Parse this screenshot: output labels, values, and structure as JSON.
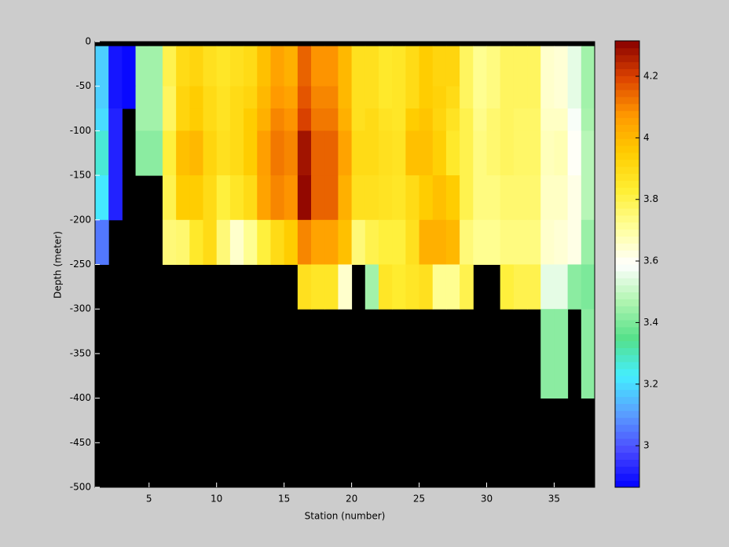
{
  "chart_data": {
    "type": "heatmap",
    "xlabel": "Station (number)",
    "ylabel": "Depth (meter)",
    "x_edges": [
      1,
      2,
      3,
      4,
      5,
      6,
      7,
      8,
      9,
      10,
      11,
      12,
      13,
      14,
      15,
      16,
      17,
      18,
      19,
      20,
      21,
      22,
      23,
      24,
      25,
      26,
      27,
      28,
      29,
      30,
      31,
      32,
      33,
      34,
      35,
      36,
      37,
      38
    ],
    "y_edges": [
      0,
      -5,
      -50,
      -75,
      -100,
      -150,
      -200,
      -250,
      -300,
      -400,
      -500
    ],
    "z": [
      [
        null,
        null,
        null,
        null,
        null,
        null,
        null,
        null,
        null,
        null,
        null,
        null,
        null,
        null,
        null,
        null,
        null,
        null,
        null,
        null,
        null,
        null,
        null,
        null,
        null,
        null,
        null,
        null,
        null,
        null,
        null,
        null,
        null,
        null,
        null,
        null,
        null
      ],
      [
        3.18,
        2.9,
        2.88,
        3.45,
        3.45,
        3.8,
        3.9,
        3.92,
        3.88,
        3.86,
        3.88,
        3.9,
        3.98,
        4.05,
        4.02,
        4.15,
        4.08,
        4.08,
        4.0,
        3.88,
        3.88,
        3.85,
        3.86,
        3.9,
        3.95,
        3.92,
        3.92,
        3.78,
        3.72,
        3.74,
        3.78,
        3.78,
        3.78,
        3.65,
        3.64,
        3.55,
        3.45
      ],
      [
        3.18,
        2.9,
        2.88,
        3.45,
        3.45,
        3.78,
        3.92,
        3.95,
        3.9,
        3.87,
        3.9,
        3.92,
        4.0,
        4.07,
        4.05,
        4.17,
        4.1,
        4.1,
        4.0,
        3.88,
        3.88,
        3.85,
        3.86,
        3.9,
        3.95,
        3.93,
        3.9,
        3.78,
        3.72,
        3.74,
        3.78,
        3.78,
        3.78,
        3.65,
        3.64,
        3.55,
        3.45
      ],
      [
        3.2,
        2.92,
        null,
        3.45,
        3.45,
        3.78,
        3.92,
        3.95,
        3.9,
        3.87,
        3.9,
        3.95,
        4.02,
        4.1,
        4.08,
        4.2,
        4.12,
        4.12,
        4.02,
        3.88,
        3.9,
        3.87,
        3.86,
        3.95,
        3.97,
        3.92,
        3.87,
        3.8,
        3.73,
        3.76,
        3.78,
        3.77,
        3.77,
        3.66,
        3.66,
        3.58,
        3.46
      ],
      [
        3.27,
        2.92,
        null,
        3.42,
        3.42,
        3.82,
        3.98,
        4.0,
        3.92,
        3.88,
        3.9,
        3.95,
        4.06,
        4.12,
        4.1,
        4.28,
        4.15,
        4.15,
        4.05,
        3.9,
        3.9,
        3.88,
        3.87,
        3.98,
        3.98,
        3.94,
        3.85,
        3.8,
        3.74,
        3.76,
        3.78,
        3.77,
        3.77,
        3.67,
        3.68,
        3.6,
        3.48
      ],
      [
        3.22,
        2.92,
        null,
        null,
        null,
        3.8,
        3.95,
        3.95,
        3.9,
        3.82,
        3.86,
        3.9,
        4.05,
        4.1,
        4.08,
        4.3,
        4.15,
        4.15,
        4.02,
        3.88,
        3.88,
        3.87,
        3.86,
        3.9,
        3.95,
        3.98,
        3.95,
        3.8,
        3.74,
        3.74,
        3.76,
        3.76,
        3.76,
        3.66,
        3.66,
        3.62,
        3.48
      ],
      [
        3.05,
        null,
        null,
        null,
        null,
        3.75,
        3.76,
        3.85,
        3.9,
        3.75,
        3.65,
        3.72,
        3.82,
        3.9,
        3.95,
        4.1,
        4.05,
        4.05,
        3.98,
        3.75,
        3.8,
        3.82,
        3.82,
        3.88,
        4.02,
        4.02,
        4.0,
        3.75,
        3.72,
        3.72,
        3.74,
        3.74,
        3.74,
        3.65,
        3.64,
        3.62,
        3.44
      ],
      [
        null,
        null,
        null,
        null,
        null,
        null,
        null,
        null,
        null,
        null,
        null,
        null,
        null,
        null,
        null,
        3.88,
        3.86,
        3.86,
        3.65,
        null,
        3.45,
        3.86,
        3.84,
        3.86,
        3.88,
        3.72,
        3.72,
        3.8,
        null,
        null,
        3.82,
        3.8,
        3.8,
        3.55,
        3.55,
        3.42,
        3.4
      ],
      [
        null,
        null,
        null,
        null,
        null,
        null,
        null,
        null,
        null,
        null,
        null,
        null,
        null,
        null,
        null,
        null,
        null,
        null,
        null,
        null,
        null,
        null,
        null,
        null,
        null,
        null,
        null,
        null,
        null,
        null,
        null,
        null,
        null,
        3.42,
        3.42,
        null,
        3.42
      ],
      [
        null,
        null,
        null,
        null,
        null,
        null,
        null,
        null,
        null,
        null,
        null,
        null,
        null,
        null,
        null,
        null,
        null,
        null,
        null,
        null,
        null,
        null,
        null,
        null,
        null,
        null,
        null,
        null,
        null,
        null,
        null,
        null,
        null,
        null,
        null,
        null,
        null
      ]
    ],
    "xlim": [
      1,
      38
    ],
    "xticks": [
      5,
      10,
      15,
      20,
      25,
      30,
      35
    ],
    "ylim": [
      -500,
      0
    ],
    "yticks": [
      0,
      -50,
      -100,
      -150,
      -200,
      -250,
      -300,
      -350,
      -400,
      -450,
      -500
    ],
    "clim": [
      2.865,
      4.315
    ],
    "cticks": [
      3,
      3.2,
      3.4,
      3.6,
      3.8,
      4,
      4.2
    ],
    "colormap": [
      "#0000ff",
      "#4a4aff",
      "#5aa0ff",
      "#44eeff",
      "#55e08a",
      "#b0f5b0",
      "#ffffff",
      "#ffff99",
      "#ffee33",
      "#ffcc00",
      "#ff9900",
      "#dd4400",
      "#880000"
    ],
    "nan_color": "#000000"
  }
}
